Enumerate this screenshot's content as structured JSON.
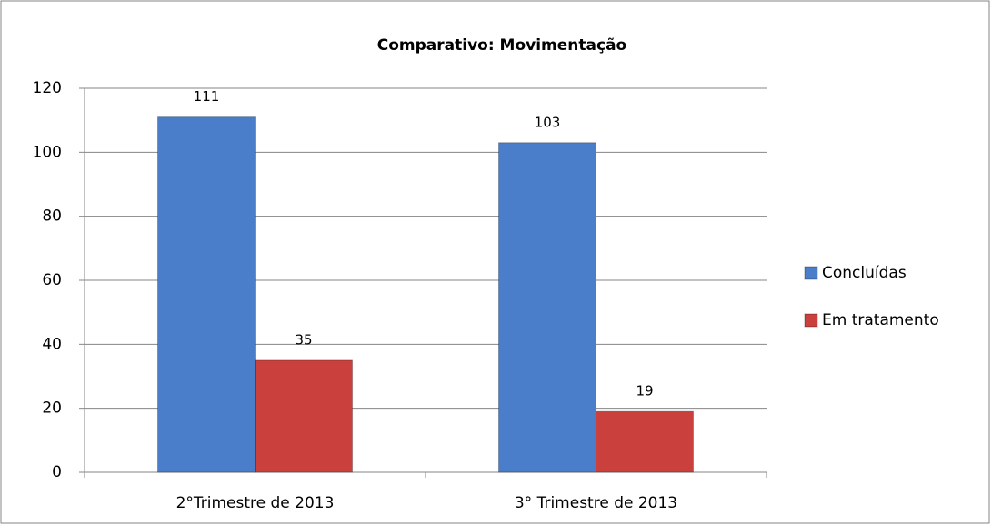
{
  "chart_data": {
    "type": "bar",
    "title": "Comparativo: Movimentação",
    "categories": [
      "2°Trimestre de 2013",
      "3° Trimestre de 2013"
    ],
    "series": [
      {
        "name": "Concluídas",
        "color": "#4a7ecb",
        "values": [
          111,
          103
        ]
      },
      {
        "name": "Em tratamento",
        "color": "#c9403d",
        "values": [
          35,
          19
        ]
      }
    ],
    "ylim": [
      0,
      120
    ],
    "yticks": [
      0,
      20,
      40,
      60,
      80,
      100,
      120
    ],
    "grid": true,
    "legend": "right"
  }
}
